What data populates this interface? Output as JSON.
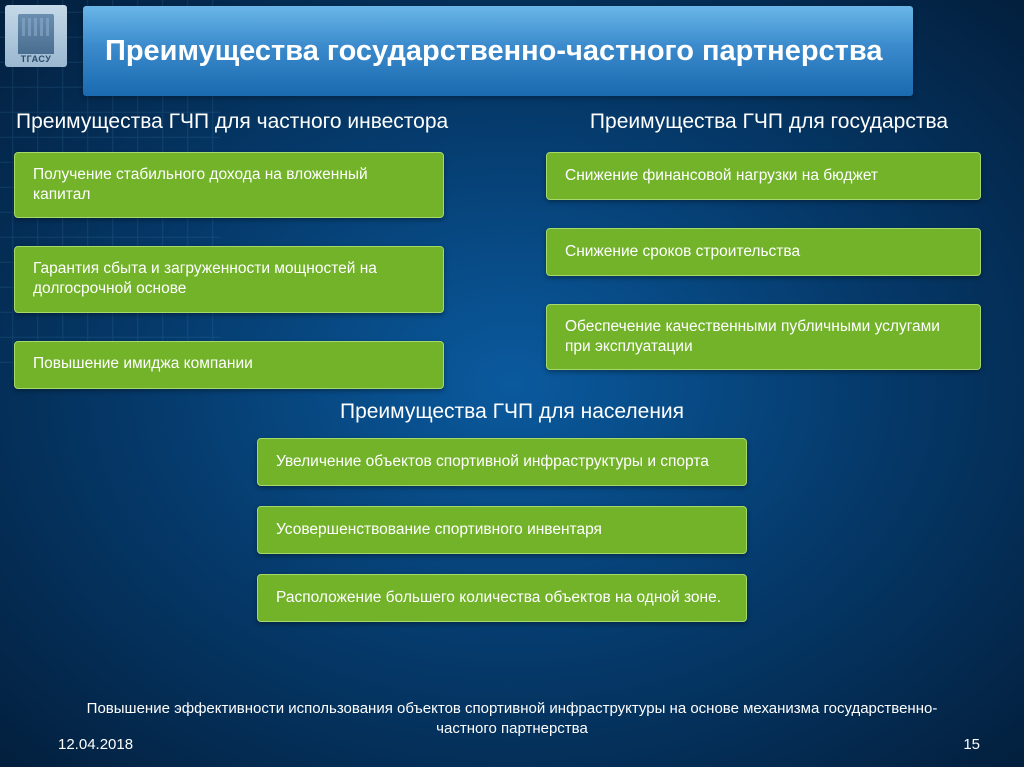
{
  "logo_label": "ТГАСУ",
  "title": "Преимущества государственно-частного партнерства",
  "left": {
    "heading": "Преимущества ГЧП для частного инвестора",
    "items": [
      "Получение стабильного дохода на вложенный капитал",
      "Гарантия сбыта и загруженности мощностей на долгосрочной основе",
      "Повышение имиджа компании"
    ]
  },
  "right": {
    "heading": "Преимущества ГЧП для государства",
    "items": [
      "Снижение финансовой нагрузки на бюджет",
      "Снижение сроков строительства",
      "Обеспечение качественными публичными услугами при эксплуатации"
    ]
  },
  "center": {
    "heading": "Преимущества ГЧП для населения",
    "items": [
      "Увеличение объектов спортивной инфраструктуры и спорта",
      "Усовершенствование спортивного инвентаря",
      "Расположение большего количества объектов на одной зоне."
    ]
  },
  "footer": {
    "text": "Повышение эффективности использования объектов спортивной инфраструктуры на основе механизма государственно-частного партнерства",
    "date": "12.04.2018",
    "page": "15"
  },
  "colors": {
    "box_fill": "#72b32a",
    "box_border": "#a6d96a",
    "banner_top": "#6ab6e8",
    "banner_bottom": "#1a6ab0",
    "bg_center": "#0a5a9e",
    "bg_edge": "#031f3d",
    "text": "#ffffff"
  },
  "typography": {
    "title_fontsize": 29,
    "heading_fontsize": 21,
    "box_fontsize": 15.5,
    "footer_fontsize": 15
  }
}
